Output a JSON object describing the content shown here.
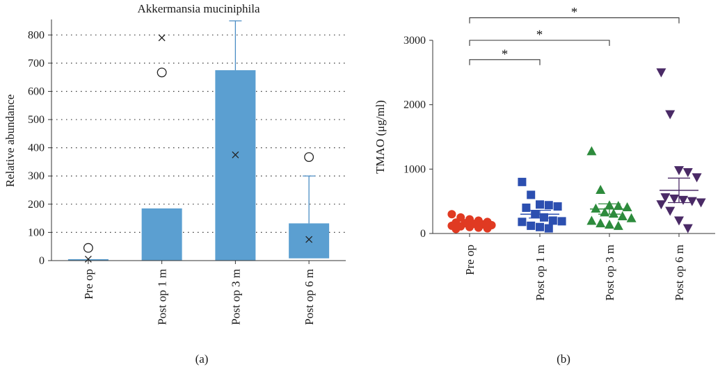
{
  "colors": {
    "bar": "#5b9fd1",
    "whisker": "#4a8cc4",
    "axis": "#333333",
    "grid": "#333333",
    "marker": "#222222",
    "preop": "#e03a22",
    "post1": "#2c4fb0",
    "post3": "#2d8b3c",
    "post6": "#4a2a66"
  },
  "chart_data": [
    {
      "type": "bar",
      "panel_label": "(a)",
      "title": "Akkermansia muciniphila",
      "ylabel": "Relative abundance",
      "xlabel": "",
      "ylim": [
        0,
        850
      ],
      "yticks": [
        0,
        100,
        200,
        300,
        400,
        500,
        600,
        700,
        800
      ],
      "grid": true,
      "categories": [
        "Pre op",
        "Post op 1 m",
        "Post op 3 m",
        "Post op 6 m"
      ],
      "bars": [
        {
          "bottom": 0,
          "top": 5,
          "whisker_high": null,
          "mean": 5,
          "outliers": [
            45
          ],
          "cross_outliers": []
        },
        {
          "bottom": 0,
          "top": 185,
          "whisker_high": null,
          "mean": null,
          "outliers": [
            667
          ],
          "cross_outliers": [
            790
          ]
        },
        {
          "bottom": 0,
          "top": 675,
          "whisker_high": 850,
          "mean": 375,
          "outliers": [],
          "cross_outliers": []
        },
        {
          "bottom": 8,
          "top": 132,
          "whisker_high": 300,
          "mean": 75,
          "outliers": [
            367
          ],
          "cross_outliers": []
        }
      ]
    },
    {
      "type": "scatter",
      "panel_label": "(b)",
      "title": "",
      "ylabel": "TMAO (μg/ml)",
      "xlabel": "",
      "ylim": [
        0,
        3000
      ],
      "yticks": [
        0,
        1000,
        2000,
        3000
      ],
      "grid": false,
      "categories": [
        "Pre op",
        "Post op 1 m",
        "Post op 3 m",
        "Post op 6 m"
      ],
      "series": [
        {
          "name": "Pre op",
          "marker": "circle",
          "values": [
            300,
            250,
            220,
            200,
            180,
            170,
            160,
            150,
            140,
            130,
            120,
            110,
            100,
            90,
            80,
            70
          ],
          "mean": 140,
          "sem": 20
        },
        {
          "name": "Post op 1 m",
          "marker": "square",
          "values": [
            800,
            600,
            450,
            440,
            420,
            400,
            300,
            250,
            200,
            190,
            180,
            120,
            100,
            80
          ],
          "mean": 300,
          "sem": 60
        },
        {
          "name": "Post op 3 m",
          "marker": "triangle-up",
          "values": [
            1280,
            680,
            440,
            430,
            410,
            390,
            330,
            310,
            270,
            240,
            200,
            160,
            140,
            120
          ],
          "mean": 380,
          "sem": 80
        },
        {
          "name": "Post op 6 m",
          "marker": "triangle-down",
          "values": [
            2500,
            1850,
            980,
            950,
            870,
            560,
            540,
            520,
            500,
            480,
            450,
            350,
            200,
            80
          ],
          "mean": 670,
          "sem": 190
        }
      ],
      "significance": [
        {
          "from": 0,
          "to": 1,
          "level": 2700,
          "label": "*"
        },
        {
          "from": 0,
          "to": 2,
          "level": 3000,
          "label": "*"
        },
        {
          "from": 0,
          "to": 3,
          "level": 3350,
          "label": "*"
        }
      ]
    }
  ]
}
